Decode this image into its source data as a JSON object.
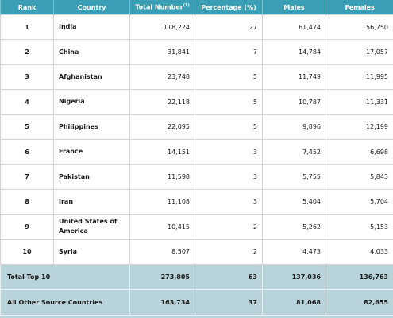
{
  "table": {
    "headers": [
      "Rank",
      "Country",
      "Total Number",
      "Percentage (%)",
      "Males",
      "Females"
    ],
    "header_superscript": "(1)",
    "rows": [
      [
        "1",
        "India",
        "118,224",
        "27",
        "61,474",
        "56,750"
      ],
      [
        "2",
        "China",
        "31,841",
        "7",
        "14,784",
        "17,057"
      ],
      [
        "3",
        "Afghanistan",
        "23,748",
        "5",
        "11,749",
        "11,995"
      ],
      [
        "4",
        "Nigeria",
        "22,118",
        "5",
        "10,787",
        "11,331"
      ],
      [
        "5",
        "Philippines",
        "22,095",
        "5",
        "9,896",
        "12,199"
      ],
      [
        "6",
        "France",
        "14,151",
        "3",
        "7,452",
        "6,698"
      ],
      [
        "7",
        "Pakistan",
        "11,598",
        "3",
        "5,755",
        "5,843"
      ],
      [
        "8",
        "Iran",
        "11,108",
        "3",
        "5,404",
        "5,704"
      ],
      [
        "9",
        "United States of America",
        "10,415",
        "2",
        "5,262",
        "5,153"
      ],
      [
        "10",
        "Syria",
        "8,507",
        "2",
        "4,473",
        "4,033"
      ]
    ],
    "totals": [
      [
        "Total Top 10",
        "273,805",
        "63",
        "137,036",
        "136,763"
      ],
      [
        "All Other Source Countries",
        "163,734",
        "37",
        "81,068",
        "82,655"
      ]
    ]
  }
}
